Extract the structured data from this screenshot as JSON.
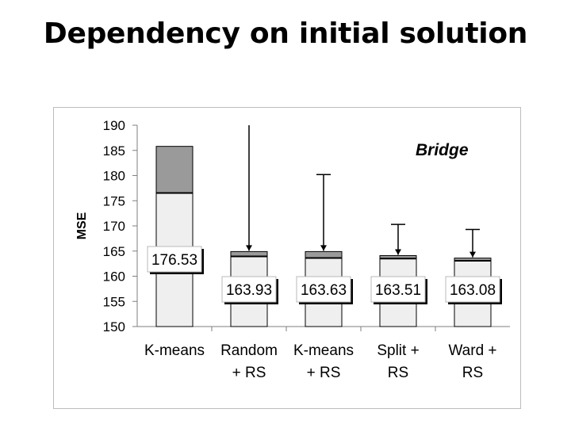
{
  "slide": {
    "title": "Dependency on initial solution"
  },
  "chart_data": {
    "type": "bar",
    "title": "",
    "annotation": "Bridge",
    "xlabel": "",
    "ylabel": "MSE",
    "ylim": [
      150,
      190
    ],
    "yticks": [
      150,
      155,
      160,
      165,
      170,
      175,
      180,
      185,
      190
    ],
    "grid": false,
    "categories": [
      [
        "K-means"
      ],
      [
        "Random",
        "+ RS"
      ],
      [
        "K-means",
        "+ RS"
      ],
      [
        "Split +",
        "RS"
      ],
      [
        "Ward +",
        "RS"
      ]
    ],
    "values": [
      176.53,
      163.93,
      163.63,
      163.51,
      163.08
    ],
    "value_labels": [
      "176.53",
      "163.93",
      "163.63",
      "163.51",
      "163.08"
    ],
    "range_top": [
      185.8,
      164.9,
      164.9,
      164.1,
      163.6
    ],
    "whisker_max": [
      null,
      190,
      180.2,
      170.3,
      169.3
    ],
    "colors": {
      "lower": "#efefef",
      "upper": "#9a9a9a",
      "axis": "#7f7f7f",
      "text": "#000000"
    }
  }
}
